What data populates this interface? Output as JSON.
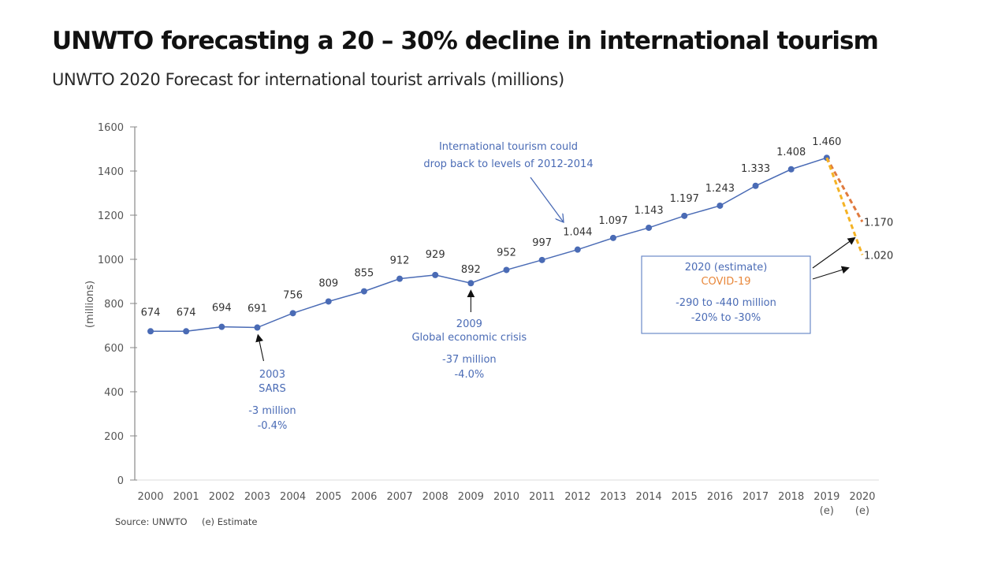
{
  "slide": {
    "title": "UNWTO forecasting a 20 – 30% decline in international tourism",
    "subtitle": "UNWTO 2020 Forecast for international tourist arrivals (millions)"
  },
  "chart_data": {
    "type": "line",
    "title": "UNWTO 2020 Forecast for international tourist arrivals (millions)",
    "xlabel": "",
    "ylabel": "(millions)",
    "ylim": [
      0,
      1600
    ],
    "yticks": [
      0,
      200,
      400,
      600,
      800,
      1000,
      1200,
      1400,
      1600
    ],
    "grid": false,
    "x": [
      2000,
      2001,
      2002,
      2003,
      2004,
      2005,
      2006,
      2007,
      2008,
      2009,
      2010,
      2011,
      2012,
      2013,
      2014,
      2015,
      2016,
      2017,
      2018,
      2019
    ],
    "x_tick_labels": [
      {
        "year": 2000,
        "label": "2000",
        "sub": ""
      },
      {
        "year": 2001,
        "label": "2001",
        "sub": ""
      },
      {
        "year": 2002,
        "label": "2002",
        "sub": ""
      },
      {
        "year": 2003,
        "label": "2003",
        "sub": ""
      },
      {
        "year": 2004,
        "label": "2004",
        "sub": ""
      },
      {
        "year": 2005,
        "label": "2005",
        "sub": ""
      },
      {
        "year": 2006,
        "label": "2006",
        "sub": ""
      },
      {
        "year": 2007,
        "label": "2007",
        "sub": ""
      },
      {
        "year": 2008,
        "label": "2008",
        "sub": ""
      },
      {
        "year": 2009,
        "label": "2009",
        "sub": ""
      },
      {
        "year": 2010,
        "label": "2010",
        "sub": ""
      },
      {
        "year": 2011,
        "label": "2011",
        "sub": ""
      },
      {
        "year": 2012,
        "label": "2012",
        "sub": ""
      },
      {
        "year": 2013,
        "label": "2013",
        "sub": ""
      },
      {
        "year": 2014,
        "label": "2014",
        "sub": ""
      },
      {
        "year": 2015,
        "label": "2015",
        "sub": ""
      },
      {
        "year": 2016,
        "label": "2016",
        "sub": ""
      },
      {
        "year": 2017,
        "label": "2017",
        "sub": ""
      },
      {
        "year": 2018,
        "label": "2018",
        "sub": ""
      },
      {
        "year": 2019,
        "label": "2019",
        "sub": "(e)"
      },
      {
        "year": 2020,
        "label": "2020",
        "sub": "(e)"
      }
    ],
    "series": [
      {
        "name": "International tourist arrivals",
        "color": "#4a6bb5",
        "values": [
          674,
          674,
          694,
          691,
          756,
          809,
          855,
          912,
          929,
          892,
          952,
          997,
          1044,
          1097,
          1143,
          1197,
          1243,
          1333,
          1408,
          1460
        ],
        "labels": [
          "674",
          "674",
          "694",
          "691",
          "756",
          "809",
          "855",
          "912",
          "929",
          "892",
          "952",
          "997",
          "1.044",
          "1.097",
          "1.143",
          "1.197",
          "1.243",
          "1.333",
          "1.408",
          "1.460"
        ]
      }
    ],
    "forecast": [
      {
        "name": "2020 forecast (upper)",
        "from_year": 2019,
        "from_value": 1460,
        "to_year": 2020,
        "to_value": 1170,
        "label": "1.170",
        "color": "#e07a3e",
        "style": "dashed"
      },
      {
        "name": "2020 forecast (lower)",
        "from_year": 2019,
        "from_value": 1460,
        "to_year": 2020,
        "to_value": 1020,
        "label": "1.020",
        "color": "#f5b324",
        "style": "dashed"
      }
    ],
    "annotations": {
      "sars": {
        "year": 2003,
        "lines": [
          "2003",
          "SARS"
        ],
        "stats": [
          "-3 million",
          "-0.4%"
        ]
      },
      "crisis": {
        "year": 2009,
        "lines": [
          "2009",
          "Global economic crisis"
        ],
        "stats": [
          "-37 million",
          "-4.0%"
        ]
      },
      "drop_back": {
        "lines": [
          "International tourism could",
          "drop back to levels of 2012-2014"
        ],
        "target_year": 2012
      },
      "covid_box": {
        "line1": "2020 (estimate)",
        "line2": "COVID-19",
        "stats": [
          "-290 to -440 million",
          "-20% to -30%"
        ]
      }
    },
    "source_note": "Source: UNWTO",
    "estimate_note": "(e) Estimate"
  },
  "colors": {
    "series": "#4a6bb5",
    "annotation_text": "#4a6bb5",
    "covid": "#e8873a",
    "forecast_upper": "#e07a3e",
    "forecast_lower": "#f5b324",
    "axis": "#888888"
  }
}
